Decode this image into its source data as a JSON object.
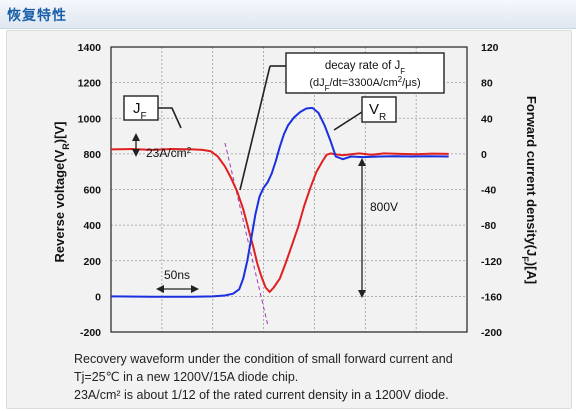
{
  "header": {
    "title": "恢复特性"
  },
  "chart_data": {
    "type": "line",
    "y_left": {
      "label": "Reverse voltage(V",
      "label_sub": "R",
      "label_end": ")[V]",
      "range": [
        -200,
        1400
      ],
      "ticks": [
        -200,
        0,
        200,
        400,
        600,
        800,
        1000,
        1200,
        1400
      ]
    },
    "y_right": {
      "label": "Forward current density(J",
      "label_sub": "F",
      "label_end": ")[A]",
      "range": [
        -200,
        120
      ],
      "ticks": [
        -200,
        -160,
        -120,
        -80,
        -40,
        0,
        40,
        80,
        120
      ]
    },
    "time_range": [
      0,
      350
    ],
    "grid": true,
    "series": [
      {
        "name": "J",
        "name_sub": "F",
        "axis": "right",
        "color": "#e0201f",
        "points": [
          [
            0,
            5
          ],
          [
            20,
            5.5
          ],
          [
            40,
            4.5
          ],
          [
            60,
            5.5
          ],
          [
            80,
            5
          ],
          [
            90,
            4.5
          ],
          [
            98,
            3
          ],
          [
            105,
            -3
          ],
          [
            112,
            -14
          ],
          [
            118,
            -27
          ],
          [
            124,
            -42
          ],
          [
            130,
            -62
          ],
          [
            136,
            -88
          ],
          [
            140,
            -105
          ],
          [
            144,
            -124
          ],
          [
            148,
            -138
          ],
          [
            152,
            -150
          ],
          [
            156,
            -155
          ],
          [
            160,
            -150
          ],
          [
            166,
            -140
          ],
          [
            172,
            -122
          ],
          [
            178,
            -102
          ],
          [
            184,
            -82
          ],
          [
            190,
            -58
          ],
          [
            196,
            -38
          ],
          [
            202,
            -20
          ],
          [
            208,
            -8
          ],
          [
            212,
            -1
          ],
          [
            216,
            0.5
          ],
          [
            220,
            -0.5
          ],
          [
            228,
            -1.5
          ],
          [
            236,
            -0.5
          ],
          [
            244,
            0.5
          ],
          [
            256,
            -1
          ],
          [
            268,
            0.5
          ],
          [
            284,
            0
          ],
          [
            300,
            -0.5
          ],
          [
            316,
            0.3
          ],
          [
            332,
            0
          ]
        ]
      },
      {
        "name": "V",
        "name_sub": "R",
        "axis": "left",
        "color": "#1a2fe0",
        "points": [
          [
            0,
            0
          ],
          [
            40,
            -2
          ],
          [
            80,
            -2
          ],
          [
            100,
            0
          ],
          [
            112,
            5
          ],
          [
            120,
            15
          ],
          [
            126,
            40
          ],
          [
            130,
            100
          ],
          [
            134,
            200
          ],
          [
            138,
            330
          ],
          [
            142,
            460
          ],
          [
            146,
            560
          ],
          [
            150,
            610
          ],
          [
            154,
            640
          ],
          [
            158,
            690
          ],
          [
            162,
            760
          ],
          [
            166,
            840
          ],
          [
            170,
            910
          ],
          [
            174,
            960
          ],
          [
            180,
            1005
          ],
          [
            186,
            1035
          ],
          [
            192,
            1055
          ],
          [
            198,
            1058
          ],
          [
            204,
            1030
          ],
          [
            210,
            960
          ],
          [
            216,
            870
          ],
          [
            221,
            785
          ],
          [
            228,
            770
          ],
          [
            236,
            785
          ],
          [
            248,
            782
          ],
          [
            264,
            785
          ],
          [
            280,
            787
          ],
          [
            296,
            785
          ],
          [
            312,
            787
          ],
          [
            332,
            785
          ]
        ]
      }
    ],
    "annotations": {
      "jf_box": "J",
      "jf_box_sub": "F",
      "vr_box": "V",
      "vr_box_sub": "R",
      "current_label": "23A/cm",
      "current_label_sup": "2",
      "time_label": "50ns",
      "voltage_label": "800V",
      "decay_line1": "decay rate of J",
      "decay_line1_sub": "F",
      "decay_line2_a": "(dJ",
      "decay_line2_sub": "F",
      "decay_line2_b": "/dt=3300A/cm",
      "decay_line2_sup": "2",
      "decay_line2_c": "/μs)"
    }
  },
  "caption": {
    "line1": "Recovery waveform under the condition of small forward current and",
    "line2": "Tj=25℃ in a new 1200V/15A diode chip.",
    "line3": "23A/cm² is about 1/12 of the rated current density in a 1200V diode."
  }
}
